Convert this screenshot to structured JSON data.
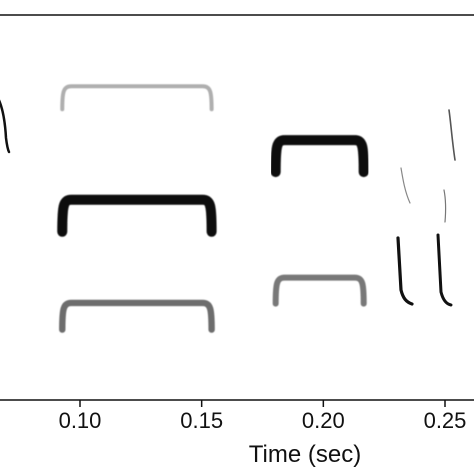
{
  "chart_data": {
    "type": "spectrogram",
    "title": "",
    "xlabel": "Time (sec)",
    "ylabel": "",
    "xlim": [
      0.05,
      0.27
    ],
    "x_ticks": [
      0.1,
      0.15,
      0.2,
      0.25
    ],
    "x_tick_labels": [
      "0.10",
      "0.15",
      "0.20",
      "0.25"
    ],
    "frequency_range": [
      0,
      1
    ],
    "frequency_units": "relative (axis unlabeled)",
    "colormap": "white-to-black",
    "grid": false,
    "traces": [
      {
        "name": "element-1-upper-harmonic",
        "t_start": 0.0923,
        "t_end": 0.1545,
        "level": 0.815,
        "intensity": 0.25
      },
      {
        "name": "element-1-fundamental",
        "t_start": 0.0923,
        "t_end": 0.1545,
        "level": 0.52,
        "intensity": 1.0
      },
      {
        "name": "element-1-lower-band",
        "t_start": 0.0923,
        "t_end": 0.1545,
        "level": 0.252,
        "intensity": 0.55
      },
      {
        "name": "element-2-fundamental",
        "t_start": 0.18,
        "t_end": 0.217,
        "level": 0.675,
        "intensity": 1.0
      },
      {
        "name": "element-2-lower-band",
        "t_start": 0.18,
        "t_end": 0.217,
        "level": 0.318,
        "intensity": 0.5
      }
    ]
  }
}
